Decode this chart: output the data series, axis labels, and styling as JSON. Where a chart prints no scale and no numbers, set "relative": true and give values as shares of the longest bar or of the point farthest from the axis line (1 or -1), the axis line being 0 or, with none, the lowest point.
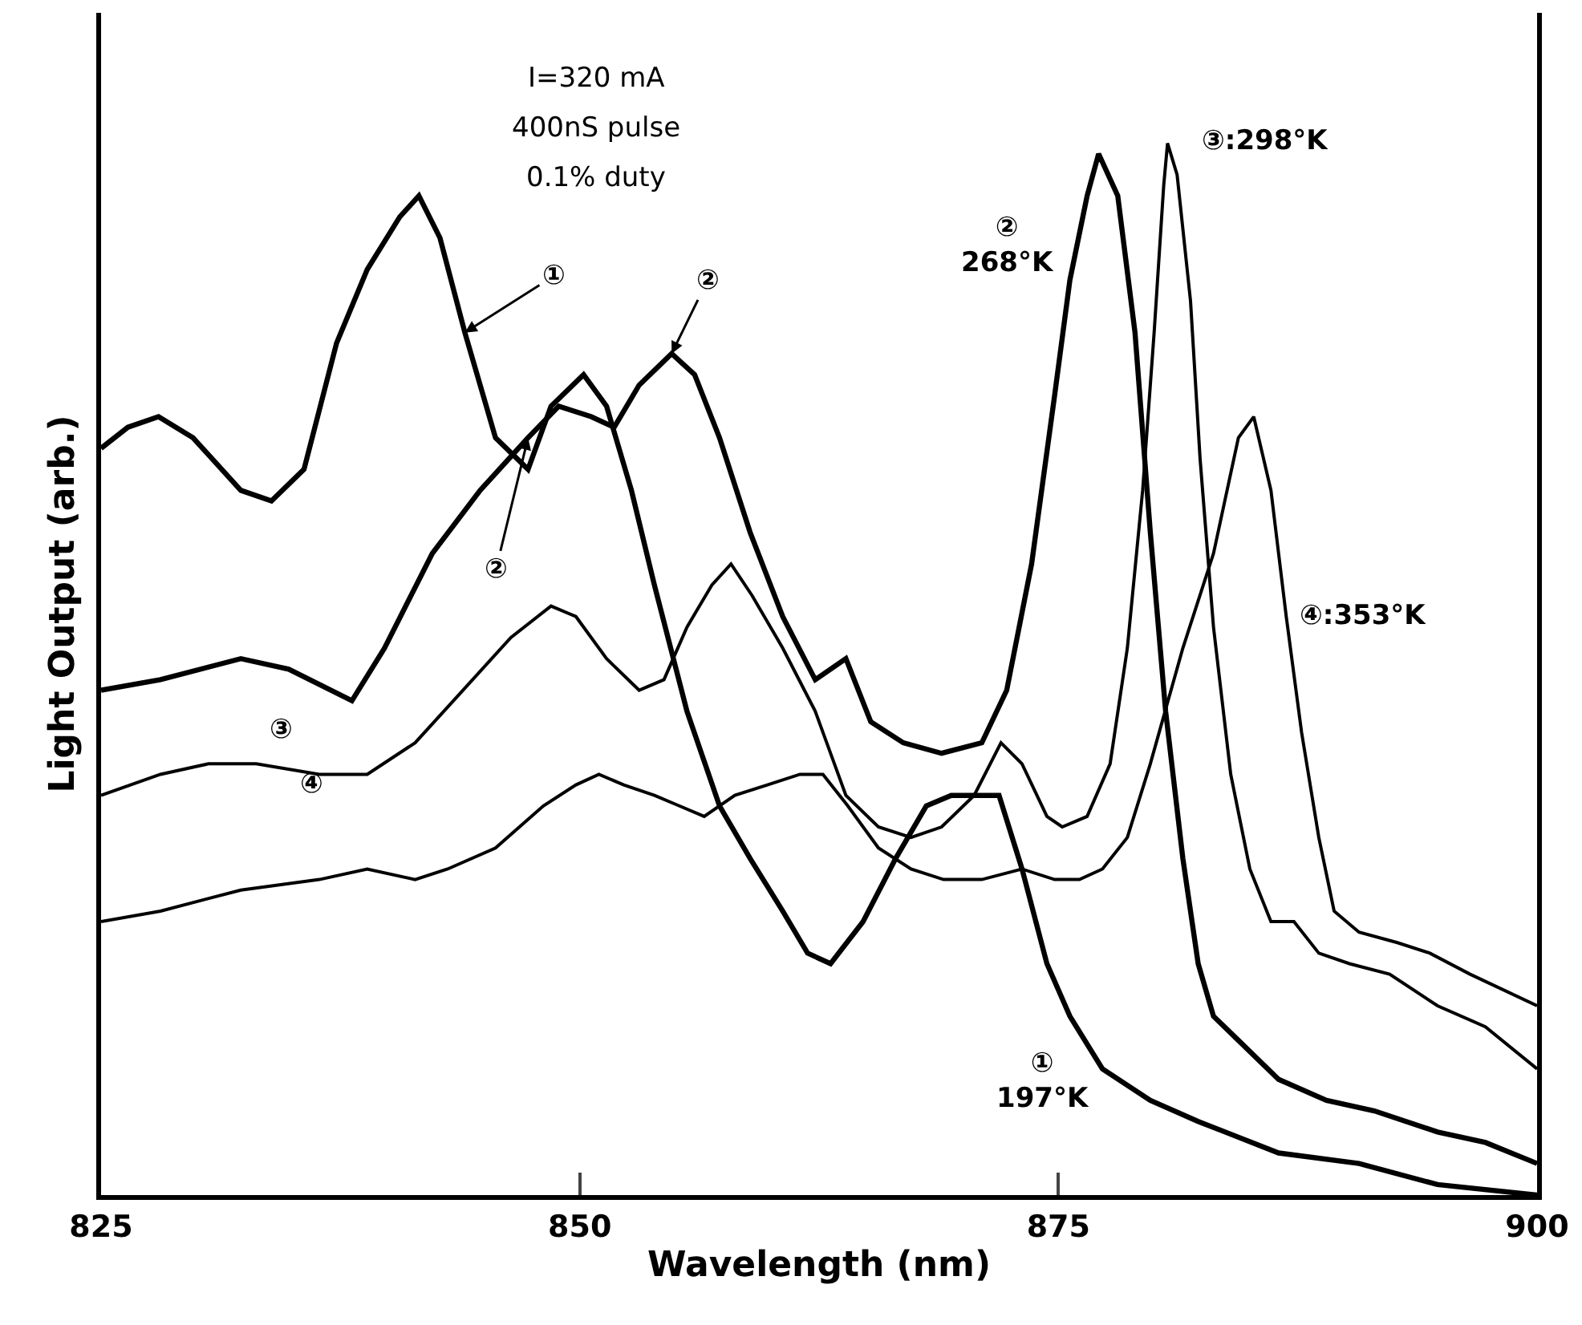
{
  "chart_data": {
    "type": "line",
    "relative": true,
    "xlabel": "Wavelength (nm)",
    "ylabel": "Light Output (arb.)",
    "xlim": [
      825,
      900
    ],
    "xticks": [
      825,
      850,
      875,
      900
    ],
    "marker": "none",
    "line_style": "solid",
    "series": [
      {
        "color": "#000000",
        "x": [
          825.0,
          826.4,
          828.0,
          829.8,
          832.3,
          833.9,
          835.6,
          837.3,
          838.9,
          840.6,
          841.6,
          842.7,
          844.0,
          845.6,
          847.3,
          848.5,
          850.2,
          851.4,
          852.7,
          853.9,
          855.6,
          857.3,
          858.9,
          860.6,
          861.9,
          863.1,
          864.8,
          866.5,
          868.1,
          869.4,
          870.6,
          871.9,
          873.1,
          874.4,
          875.6,
          877.3,
          879.8,
          882.3,
          886.5,
          890.7,
          894.8,
          900.0
        ],
        "values": [
          0.71,
          0.73,
          0.74,
          0.72,
          0.67,
          0.66,
          0.69,
          0.81,
          0.88,
          0.93,
          0.95,
          0.91,
          0.82,
          0.72,
          0.69,
          0.75,
          0.78,
          0.75,
          0.67,
          0.58,
          0.46,
          0.37,
          0.32,
          0.27,
          0.23,
          0.22,
          0.26,
          0.32,
          0.37,
          0.38,
          0.38,
          0.38,
          0.31,
          0.22,
          0.17,
          0.12,
          0.09,
          0.07,
          0.04,
          0.03,
          0.01,
          0.0
        ]
      },
      {
        "color": "#000000",
        "x": [
          825.0,
          828.1,
          832.3,
          834.8,
          838.1,
          839.8,
          842.3,
          844.8,
          847.3,
          848.9,
          850.6,
          851.8,
          853.1,
          854.8,
          856.0,
          857.3,
          858.9,
          860.6,
          862.3,
          863.9,
          865.2,
          866.9,
          868.9,
          871.0,
          872.3,
          873.6,
          874.8,
          875.6,
          876.5,
          877.1,
          878.1,
          879.0,
          879.8,
          880.6,
          881.5,
          882.3,
          883.1,
          884.8,
          886.5,
          889.0,
          891.5,
          894.8,
          897.3,
          900.0
        ],
        "values": [
          0.48,
          0.49,
          0.51,
          0.5,
          0.47,
          0.52,
          0.61,
          0.67,
          0.72,
          0.75,
          0.74,
          0.73,
          0.77,
          0.8,
          0.78,
          0.72,
          0.63,
          0.55,
          0.49,
          0.51,
          0.45,
          0.43,
          0.42,
          0.43,
          0.48,
          0.6,
          0.76,
          0.87,
          0.95,
          0.99,
          0.95,
          0.82,
          0.63,
          0.46,
          0.32,
          0.22,
          0.17,
          0.14,
          0.11,
          0.09,
          0.08,
          0.06,
          0.05,
          0.03
        ]
      },
      {
        "color": "#000000",
        "x": [
          825.0,
          828.1,
          830.6,
          833.1,
          836.4,
          838.9,
          841.4,
          843.9,
          846.4,
          848.5,
          849.8,
          851.4,
          853.1,
          854.4,
          855.6,
          856.9,
          857.9,
          859.0,
          860.6,
          862.3,
          863.9,
          865.6,
          867.3,
          868.9,
          870.6,
          872.0,
          873.1,
          874.4,
          875.2,
          876.5,
          877.7,
          878.6,
          879.4,
          880.0,
          880.5,
          880.7,
          881.2,
          881.9,
          882.4,
          883.1,
          884.0,
          885.0,
          886.1,
          887.3,
          888.6,
          890.2,
          892.3,
          894.8,
          897.3,
          900.0
        ],
        "values": [
          0.38,
          0.4,
          0.41,
          0.41,
          0.4,
          0.4,
          0.43,
          0.48,
          0.53,
          0.56,
          0.55,
          0.51,
          0.48,
          0.49,
          0.54,
          0.58,
          0.6,
          0.57,
          0.52,
          0.46,
          0.38,
          0.35,
          0.34,
          0.35,
          0.38,
          0.43,
          0.41,
          0.36,
          0.35,
          0.36,
          0.41,
          0.52,
          0.67,
          0.82,
          0.96,
          1.0,
          0.97,
          0.85,
          0.7,
          0.54,
          0.4,
          0.31,
          0.26,
          0.26,
          0.23,
          0.22,
          0.21,
          0.18,
          0.16,
          0.12
        ]
      },
      {
        "color": "#000000",
        "x": [
          825.0,
          828.1,
          832.3,
          836.4,
          838.9,
          841.4,
          843.1,
          845.6,
          848.1,
          849.8,
          851.0,
          852.3,
          853.9,
          855.2,
          856.5,
          858.1,
          859.8,
          861.5,
          862.7,
          864.0,
          865.6,
          867.3,
          869.0,
          871.0,
          873.1,
          874.8,
          876.1,
          877.3,
          878.6,
          879.8,
          881.5,
          883.1,
          884.4,
          885.2,
          886.1,
          886.9,
          887.7,
          888.6,
          889.4,
          890.7,
          892.7,
          894.4,
          896.5,
          900.0
        ],
        "values": [
          0.26,
          0.27,
          0.29,
          0.3,
          0.31,
          0.3,
          0.31,
          0.33,
          0.37,
          0.39,
          0.4,
          0.39,
          0.38,
          0.37,
          0.36,
          0.38,
          0.39,
          0.4,
          0.4,
          0.37,
          0.33,
          0.31,
          0.3,
          0.3,
          0.31,
          0.3,
          0.3,
          0.31,
          0.34,
          0.41,
          0.52,
          0.61,
          0.72,
          0.74,
          0.67,
          0.55,
          0.44,
          0.34,
          0.27,
          0.25,
          0.24,
          0.23,
          0.21,
          0.18
        ]
      }
    ],
    "annotations": [
      "I=320 mA",
      "400nS pulse",
      "0.1% duty",
      {
        "text": "①",
        "x": 844.0,
        "y": 0.82
      },
      {
        "text": "②",
        "x": 854.8,
        "y": 0.8
      },
      {
        "text": "②",
        "x": 847.3,
        "y": 0.72
      },
      {
        "text": "③",
        "x": 833.1,
        "y": 0.41
      },
      {
        "text": "④",
        "x": 836.4,
        "y": 0.3
      },
      {
        "text": "②\n268°K",
        "x": 875.6,
        "y": 0.87
      },
      {
        "text": "③:298°K",
        "x": 881.2,
        "y": 0.97
      },
      {
        "text": "④:353°K",
        "x": 886.9,
        "y": 0.55
      },
      {
        "text": "①\n197°K",
        "x": 877.3,
        "y": 0.12
      }
    ]
  }
}
